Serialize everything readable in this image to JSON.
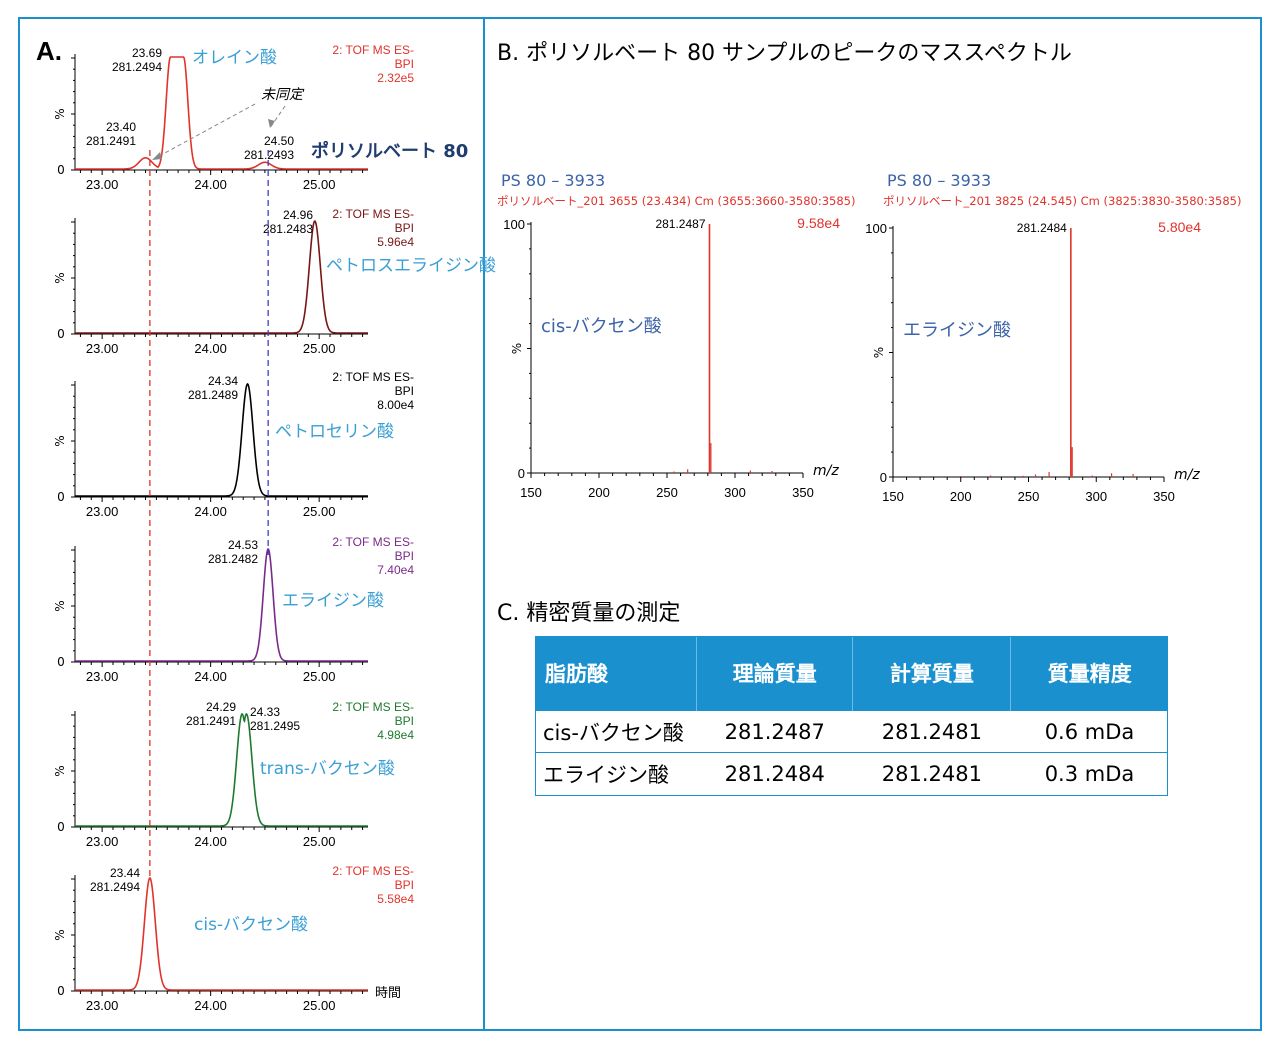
{
  "panel_a": {
    "label": "A.",
    "time_label": "時間"
  },
  "panel_b": {
    "title": "B. ポリソルベート 80 サンプルのピークのマススペクトル"
  },
  "panel_c": {
    "title": "C. 精密質量の測定",
    "headers": [
      "脂肪酸",
      "理論質量",
      "計算質量",
      "質量精度"
    ],
    "rows": [
      [
        "cis-バクセン酸",
        "281.2487",
        "281.2481",
        "0.6 mDa"
      ],
      [
        "エライジン酸",
        "281.2484",
        "281.2481",
        "0.3 mDa"
      ]
    ]
  },
  "colors": {
    "frame": "#1a90cf",
    "red": "#e0332b",
    "darkred": "#7a1515",
    "black": "#000000",
    "purple": "#7a2a8a",
    "green": "#1e7a2e",
    "label_blue": "#3a9fd4",
    "navy": "#1f3d6e",
    "annot_blue": "#3b63a8",
    "ref_red": "#e0332b",
    "ref_blue": "#4040c0"
  },
  "chart_data": [
    {
      "type": "line",
      "id": "chrom1",
      "x_ticks": [
        "23.00",
        "24.00",
        "25.00"
      ],
      "xlim": [
        22.75,
        25.45
      ],
      "ylabel": "%",
      "y_ticks": [
        "0"
      ],
      "header": [
        "2: TOF MS ES-",
        "BPI",
        "2.32e5"
      ],
      "color": "#e0332b",
      "label": "オレイン酸",
      "secondary_label": "ポリソルベート 80",
      "unidentified_label": "未同定",
      "peaks": [
        {
          "x": 23.69,
          "height": 100,
          "annot": [
            "23.69",
            "281.2494"
          ]
        },
        {
          "x": 23.4,
          "height": 10,
          "annot": [
            "23.40",
            "281.2491"
          ]
        },
        {
          "x": 24.5,
          "height": 6,
          "annot": [
            "24.50",
            "281.2493"
          ]
        }
      ]
    },
    {
      "type": "line",
      "id": "chrom2",
      "x_ticks": [
        "23.00",
        "24.00",
        "25.00"
      ],
      "xlim": [
        22.75,
        25.45
      ],
      "ylabel": "%",
      "y_ticks": [
        "0"
      ],
      "header": [
        "2: TOF MS ES-",
        "BPI",
        "5.96e4"
      ],
      "color": "#7a1515",
      "label": "ペトロスエライジン酸",
      "peaks": [
        {
          "x": 24.96,
          "height": 100,
          "annot": [
            "24.96",
            "281.2483"
          ]
        }
      ]
    },
    {
      "type": "line",
      "id": "chrom3",
      "x_ticks": [
        "23.00",
        "24.00",
        "25.00"
      ],
      "xlim": [
        22.75,
        25.45
      ],
      "ylabel": "%",
      "y_ticks": [
        "0"
      ],
      "header": [
        "2: TOF MS ES-",
        "BPI",
        "8.00e4"
      ],
      "color": "#000000",
      "label": "ペトロセリン酸",
      "peaks": [
        {
          "x": 24.34,
          "height": 100,
          "annot": [
            "24.34",
            "281.2489"
          ]
        }
      ]
    },
    {
      "type": "line",
      "id": "chrom4",
      "x_ticks": [
        "23.00",
        "24.00",
        "25.00"
      ],
      "xlim": [
        22.75,
        25.45
      ],
      "ylabel": "%",
      "y_ticks": [
        "0"
      ],
      "header": [
        "2: TOF MS ES-",
        "BPI",
        "7.40e4"
      ],
      "color": "#7a2a8a",
      "label": "エライジン酸",
      "peaks": [
        {
          "x": 24.53,
          "height": 100,
          "annot": [
            "24.53",
            "281.2482"
          ]
        }
      ]
    },
    {
      "type": "line",
      "id": "chrom5",
      "x_ticks": [
        "23.00",
        "24.00",
        "25.00"
      ],
      "xlim": [
        22.75,
        25.45
      ],
      "ylabel": "%",
      "y_ticks": [
        "0"
      ],
      "header": [
        "2: TOF MS ES-",
        "BPI",
        "4.98e4"
      ],
      "color": "#1e7a2e",
      "label": "trans-バクセン酸",
      "peaks": [
        {
          "x": 24.29,
          "height": 100,
          "annot": [
            "24.29",
            "281.2491"
          ]
        },
        {
          "x": 24.33,
          "height": 100,
          "annot": [
            "24.33",
            "281.2495"
          ]
        }
      ]
    },
    {
      "type": "line",
      "id": "chrom6",
      "x_ticks": [
        "23.00",
        "24.00",
        "25.00"
      ],
      "xlim": [
        22.75,
        25.45
      ],
      "ylabel": "%",
      "y_ticks": [
        "0"
      ],
      "header": [
        "2: TOF MS ES-",
        "BPI",
        "5.58e4"
      ],
      "color": "#e0332b",
      "label": "cis-バクセン酸",
      "peaks": [
        {
          "x": 23.44,
          "height": 100,
          "annot": [
            "23.44",
            "281.2494"
          ]
        }
      ]
    },
    {
      "type": "bar",
      "id": "spec1",
      "title": "PS 80 – 3933",
      "subtitle": "ポリソルベート_201 3655 (23.434) Cm (3655:3660-3580:3585)",
      "base_peak": "281.2487",
      "intensity": "9.58e4",
      "compound": "cis-バクセン酸",
      "xlabel": "m/z",
      "ylabel": "%",
      "xlim": [
        150,
        350
      ],
      "ylim": [
        0,
        100
      ],
      "x_ticks": [
        "150",
        "200",
        "250",
        "300",
        "350"
      ],
      "y_ticks": [
        "0",
        "100"
      ],
      "peaks": [
        {
          "mz": 281.25,
          "value": 100
        },
        {
          "mz": 282.25,
          "value": 12
        },
        {
          "mz": 265.2,
          "value": 1.5
        },
        {
          "mz": 311.3,
          "value": 1
        },
        {
          "mz": 327.2,
          "value": 0.8
        },
        {
          "mz": 255.2,
          "value": 0.6
        },
        {
          "mz": 230,
          "value": 0.4
        },
        {
          "mz": 195,
          "value": 0.3
        }
      ]
    },
    {
      "type": "bar",
      "id": "spec2",
      "title": "PS 80 – 3933",
      "subtitle": "ポリソルベート_201 3825 (24.545) Cm (3825:3830-3580:3585)",
      "base_peak": "281.2484",
      "intensity": "5.80e4",
      "compound": "エライジン酸",
      "xlabel": "m/z",
      "ylabel": "%",
      "xlim": [
        150,
        350
      ],
      "ylim": [
        0,
        100
      ],
      "x_ticks": [
        "150",
        "200",
        "250",
        "300",
        "350"
      ],
      "y_ticks": [
        "0",
        "100"
      ],
      "peaks": [
        {
          "mz": 281.25,
          "value": 100
        },
        {
          "mz": 282.25,
          "value": 12
        },
        {
          "mz": 265.2,
          "value": 2
        },
        {
          "mz": 311.3,
          "value": 1.5
        },
        {
          "mz": 327.2,
          "value": 1.2
        },
        {
          "mz": 255.2,
          "value": 1
        },
        {
          "mz": 222,
          "value": 0.6
        },
        {
          "mz": 246,
          "value": 0.5
        },
        {
          "mz": 297,
          "value": 0.6
        },
        {
          "mz": 200,
          "value": 0.4
        }
      ]
    }
  ]
}
